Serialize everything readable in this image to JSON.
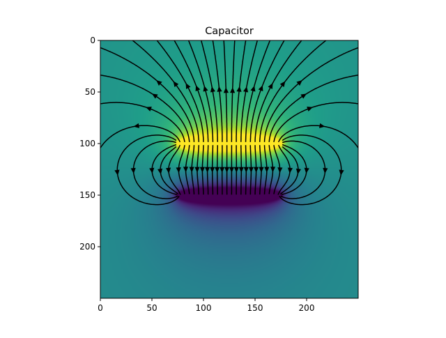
{
  "chart_data": {
    "type": "heatmap",
    "title": "Capacitor",
    "xlabel": "",
    "ylabel": "",
    "xlim": [
      0,
      250
    ],
    "ylim": [
      250,
      0
    ],
    "x_ticks": [
      0,
      50,
      100,
      150,
      200
    ],
    "y_ticks": [
      0,
      50,
      100,
      150,
      200
    ],
    "colormap": "viridis",
    "field_color": "#000000",
    "plates": [
      {
        "name": "positive",
        "x_range": [
          75,
          175
        ],
        "y": 100,
        "charge": 1
      },
      {
        "name": "negative",
        "x_range": [
          75,
          175
        ],
        "y": 150,
        "charge": -1
      }
    ],
    "grid": false,
    "legend": "none"
  }
}
